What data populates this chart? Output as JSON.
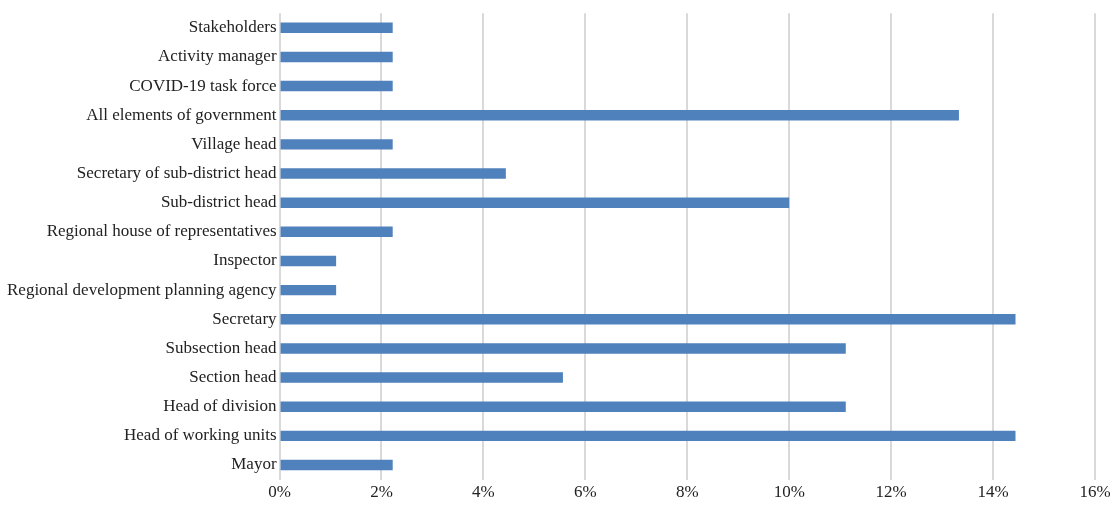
{
  "chart_data": {
    "type": "bar",
    "orientation": "horizontal",
    "categories": [
      "Stakeholders",
      "Activity manager",
      "COVID-19 task force",
      "All elements of government",
      "Village head",
      "Secretary of sub-district head",
      "Sub-district head",
      "Regional house of representatives",
      "Inspector",
      "Regional development planning agency",
      "Secretary",
      "Subsection head",
      "Section head",
      "Head of division",
      "Head of working units",
      "Mayor"
    ],
    "values": [
      2.22,
      2.22,
      2.22,
      13.33,
      2.22,
      4.44,
      10,
      2.22,
      1.11,
      1.11,
      14.44,
      11.11,
      5.56,
      11.11,
      14.44,
      2.22
    ],
    "color": "#4f81bd",
    "xlim": [
      0,
      16
    ],
    "xticks": [
      {
        "value": 0,
        "label": "0%"
      },
      {
        "value": 2,
        "label": "2%"
      },
      {
        "value": 4,
        "label": "4%"
      },
      {
        "value": 6,
        "label": "6%"
      },
      {
        "value": 8,
        "label": "8%"
      },
      {
        "value": 10,
        "label": "10%"
      },
      {
        "value": 12,
        "label": "12%"
      },
      {
        "value": 14,
        "label": "14%"
      },
      {
        "value": 16,
        "label": "16%"
      }
    ],
    "grid": "x",
    "legend": false
  }
}
